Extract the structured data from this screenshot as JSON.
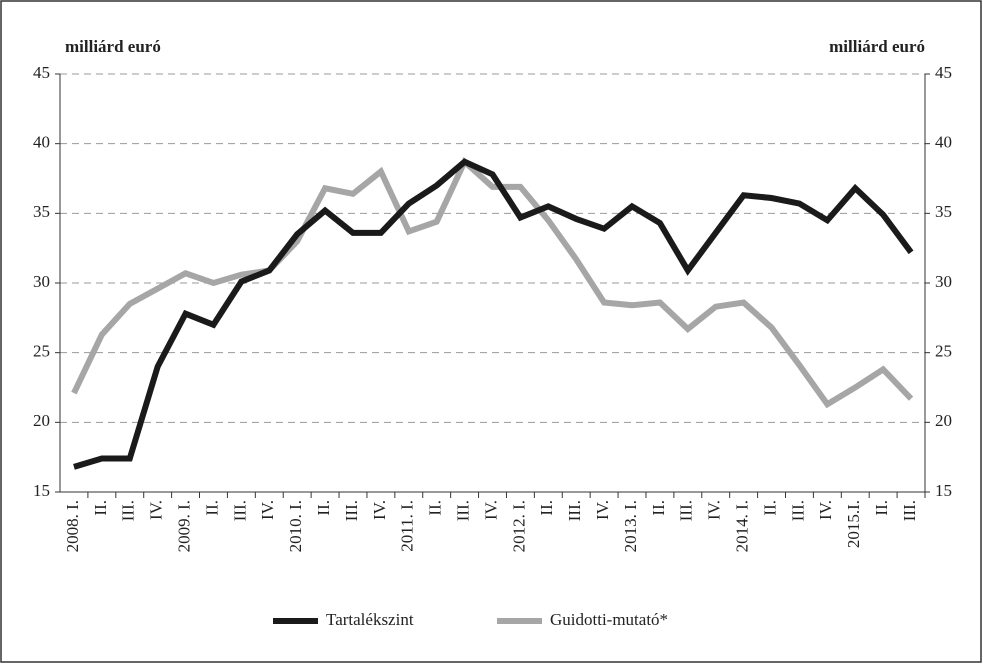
{
  "chart_data": {
    "type": "line",
    "y_label": "milliárd euró",
    "y2_label": "milliárd euró",
    "categories": [
      "2008. I.",
      "II.",
      "III.",
      "IV.",
      "2009. I.",
      "II.",
      "III.",
      "IV.",
      "2010. I.",
      "II.",
      "III.",
      "IV.",
      "2011. I.",
      "II.",
      "III.",
      "IV.",
      "2012. I.",
      "II.",
      "III.",
      "IV.",
      "2013. I.",
      "II.",
      "III.",
      "IV.",
      "2014. I.",
      "II.",
      "III.",
      "IV.",
      "2015.I.",
      "II.",
      "III."
    ],
    "series": [
      {
        "name": "Tartalékszint",
        "color": "#1a1a1a",
        "values": [
          16.8,
          17.4,
          17.4,
          24.0,
          27.8,
          27.0,
          30.1,
          30.9,
          33.5,
          35.2,
          33.6,
          33.6,
          35.7,
          37.0,
          38.7,
          37.8,
          34.7,
          35.5,
          34.6,
          33.9,
          35.5,
          34.3,
          30.9,
          33.6,
          36.3,
          36.1,
          35.7,
          34.5,
          36.8,
          34.9,
          32.2
        ]
      },
      {
        "name": "Guidotti-mutató*",
        "color": "#a6a6a6",
        "values": [
          22.1,
          26.3,
          28.5,
          29.6,
          30.7,
          30.0,
          30.6,
          30.9,
          33.0,
          36.8,
          36.4,
          38.0,
          33.7,
          34.4,
          38.7,
          36.9,
          36.9,
          34.5,
          31.7,
          28.6,
          28.4,
          28.6,
          26.7,
          28.3,
          28.6,
          26.8,
          24.1,
          21.3,
          22.5,
          23.8,
          21.7
        ]
      }
    ],
    "ylim": [
      15,
      45
    ],
    "yticks": [
      15,
      20,
      25,
      30,
      35,
      40,
      45
    ],
    "y2lim": [
      15,
      45
    ],
    "y2ticks": [
      15,
      20,
      25,
      30,
      35,
      40,
      45
    ],
    "grid": true,
    "legend": "bottom"
  }
}
